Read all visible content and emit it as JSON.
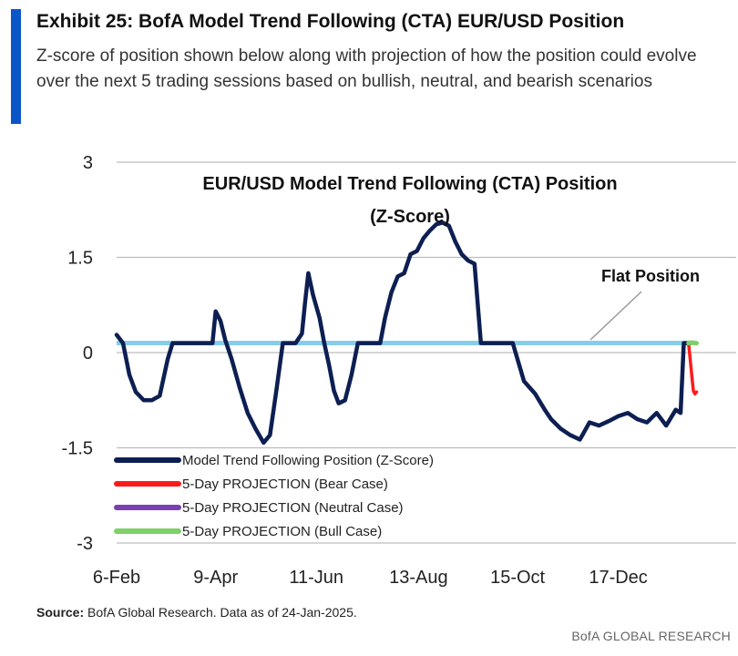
{
  "header": {
    "title": "Exhibit 25: BofA Model Trend Following (CTA) EUR/USD Position",
    "subtitle": "Z-score of position shown below along with projection of how the position could evolve over the next 5 trading sessions based on bullish, neutral, and bearish scenarios"
  },
  "footer": {
    "source_label": "Source:",
    "source_text": " BofA Global Research.  Data as of 24-Jan-2025.",
    "brand": "BofA GLOBAL RESEARCH"
  },
  "colors": {
    "accent": "#0a56c9",
    "main_series": "#0d1f52",
    "flat": "#87cdea",
    "bear": "#ff1a1a",
    "neutral": "#7b3fb4",
    "bull": "#7fd06a",
    "grid": "#bdbdbd"
  },
  "chart_data": {
    "type": "line",
    "title_lines": [
      "EUR/USD Model Trend Following (CTA) Position",
      "(Z-Score)"
    ],
    "xlabel": "",
    "ylabel": "",
    "ylim": [
      -3,
      3
    ],
    "yticks": [
      3,
      1.5,
      0,
      -1.5,
      -3
    ],
    "ytick_labels": [
      "3",
      "1.5",
      "0",
      "-1.5",
      "-3"
    ],
    "xlim": [
      0,
      365
    ],
    "xticks": [
      0,
      62,
      125,
      189,
      251,
      314
    ],
    "xtick_labels": [
      "6-Feb",
      "9-Apr",
      "11-Jun",
      "13-Aug",
      "15-Oct",
      "17-Dec"
    ],
    "annotation": "Flat Position",
    "series": [
      {
        "name": "Model Trend Following Position (Z-Score)",
        "x": [
          0,
          4,
          8,
          12,
          17,
          22,
          27,
          32,
          35,
          40,
          45,
          50,
          55,
          60,
          62,
          65,
          68,
          72,
          77,
          82,
          87,
          92,
          96,
          100,
          104,
          108,
          112,
          116,
          118,
          120,
          123,
          127,
          130,
          133,
          136,
          139,
          143,
          147,
          151,
          155,
          158,
          162,
          165,
          168,
          172,
          176,
          180,
          184,
          188,
          192,
          196,
          200,
          204,
          208,
          212,
          216,
          220,
          224,
          228,
          232,
          236,
          240,
          244,
          248,
          255,
          262,
          268,
          272,
          278,
          284,
          290,
          296,
          302,
          308,
          314,
          320,
          326,
          332,
          338,
          344,
          350,
          353,
          355,
          357,
          359,
          360
        ],
        "values": [
          0.28,
          0.15,
          -0.35,
          -0.62,
          -0.75,
          -0.75,
          -0.68,
          -0.1,
          0.15,
          0.15,
          0.15,
          0.15,
          0.15,
          0.15,
          0.65,
          0.5,
          0.2,
          -0.1,
          -0.55,
          -0.95,
          -1.2,
          -1.42,
          -1.3,
          -0.6,
          0.15,
          0.15,
          0.15,
          0.3,
          0.8,
          1.25,
          0.9,
          0.55,
          0.15,
          -0.2,
          -0.6,
          -0.8,
          -0.75,
          -0.35,
          0.15,
          0.15,
          0.15,
          0.15,
          0.15,
          0.55,
          0.95,
          1.2,
          1.25,
          1.55,
          1.6,
          1.8,
          1.92,
          2.02,
          2.05,
          2.0,
          1.75,
          1.55,
          1.45,
          1.4,
          0.15,
          0.15,
          0.15,
          0.15,
          0.15,
          0.15,
          -0.45,
          -0.65,
          -0.9,
          -1.05,
          -1.2,
          -1.3,
          -1.37,
          -1.1,
          -1.15,
          -1.08,
          -1.0,
          -0.95,
          -1.05,
          -1.1,
          -0.95,
          -1.15,
          -0.9,
          -0.95,
          0.15,
          0.15,
          0.15,
          0.15
        ]
      },
      {
        "name": "5-Day PROJECTION (Bear Case)",
        "x": [
          358,
          359,
          360,
          361,
          362,
          363
        ],
        "values": [
          0.15,
          -0.1,
          -0.35,
          -0.6,
          -0.65,
          -0.62
        ]
      },
      {
        "name": "5-Day PROJECTION (Neutral Case)",
        "x": [
          358,
          359,
          360,
          361,
          362,
          363
        ],
        "values": [
          0.15,
          0.15,
          0.15,
          0.15,
          0.15,
          0.15
        ]
      },
      {
        "name": "5-Day PROJECTION (Bull Case)",
        "x": [
          358,
          359,
          360,
          361,
          362,
          363
        ],
        "values": [
          0.15,
          0.16,
          0.15,
          0.16,
          0.15,
          0.15
        ]
      }
    ],
    "reference_line": {
      "name": "Flat Position",
      "value": 0.15
    },
    "legend": [
      "Model Trend Following Position (Z-Score)",
      "5-Day PROJECTION (Bear Case)",
      "5-Day PROJECTION (Neutral Case)",
      "5-Day PROJECTION (Bull Case)"
    ],
    "legend_position": "bottom-left",
    "grid": true
  }
}
